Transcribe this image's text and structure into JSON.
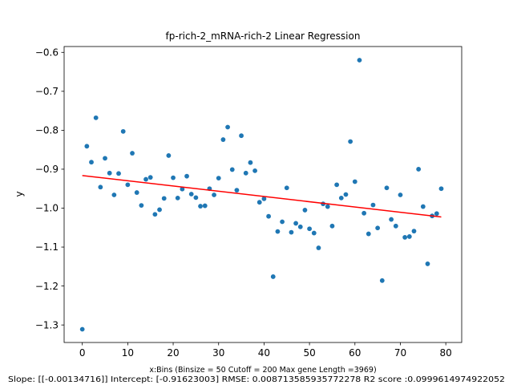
{
  "chart_data": {
    "type": "scatter",
    "title": "fp-rich-2_mRNA-rich-2 Linear Regression",
    "xlabel": "x:Bins  (Binsize = 50 Cutoff = 200 Max gene Length =3969)",
    "ylabel": "y",
    "stats_line": "Slope: [[-0.00134716]] Intercept: [-0.91623003] RMSE: 0.008713585935772278 R2 score :0.0999614974922052",
    "xlim": [
      -4,
      83.5
    ],
    "ylim": [
      -1.345,
      -0.585
    ],
    "xticks": [
      0,
      10,
      20,
      30,
      40,
      50,
      60,
      70,
      80
    ],
    "yticks": [
      -1.3,
      -1.2,
      -1.1,
      -1.0,
      -0.9,
      -0.8,
      -0.7,
      -0.6
    ],
    "xtick_labels": [
      "0",
      "10",
      "20",
      "30",
      "40",
      "50",
      "60",
      "70",
      "80"
    ],
    "ytick_labels": [
      "−1.3",
      "−1.2",
      "−1.1",
      "−1.0",
      "−0.9",
      "−0.8",
      "−0.7",
      "−0.6"
    ],
    "grid": false,
    "series": [
      {
        "kind": "points",
        "color": "#1f77b4",
        "x": [
          0,
          1,
          2,
          3,
          4,
          5,
          6,
          7,
          8,
          9,
          10,
          11,
          12,
          13,
          14,
          15,
          16,
          17,
          18,
          19,
          20,
          21,
          22,
          23,
          24,
          25,
          26,
          27,
          28,
          29,
          30,
          31,
          32,
          33,
          34,
          35,
          36,
          37,
          38,
          39,
          40,
          41,
          42,
          43,
          44,
          45,
          46,
          47,
          48,
          49,
          50,
          51,
          52,
          53,
          54,
          55,
          56,
          57,
          58,
          59,
          60,
          61,
          62,
          63,
          64,
          65,
          66,
          67,
          68,
          69,
          70,
          71,
          72,
          73,
          74,
          75,
          76,
          77,
          78,
          79
        ],
        "y": [
          -1.311,
          -0.841,
          -0.882,
          -0.768,
          -0.946,
          -0.872,
          -0.91,
          -0.966,
          -0.911,
          -0.803,
          -0.94,
          -0.859,
          -0.96,
          -0.993,
          -0.926,
          -0.921,
          -1.016,
          -1.004,
          -0.975,
          -0.865,
          -0.922,
          -0.974,
          -0.951,
          -0.918,
          -0.964,
          -0.973,
          -0.995,
          -0.994,
          -0.95,
          -0.966,
          -0.923,
          -0.824,
          -0.792,
          -0.901,
          -0.954,
          -0.814,
          -0.91,
          -0.883,
          -0.904,
          -0.985,
          -0.976,
          -1.021,
          -1.176,
          -1.06,
          -1.035,
          -0.948,
          -1.062,
          -1.039,
          -1.048,
          -1.005,
          -1.053,
          -1.064,
          -1.102,
          -0.989,
          -0.996,
          -1.046,
          -0.94,
          -0.974,
          -0.965,
          -0.829,
          -0.932,
          -0.62,
          -1.013,
          -1.066,
          -0.992,
          -1.051,
          -1.186,
          -0.948,
          -1.029,
          -1.046,
          -0.966,
          -1.075,
          -1.073,
          -1.059,
          -0.9,
          -0.996,
          -1.143,
          -1.02,
          -1.014,
          -0.95
        ]
      },
      {
        "kind": "fit_line",
        "color": "#ff0000",
        "x": [
          0,
          79
        ],
        "y": [
          -0.91623,
          -1.02266
        ]
      }
    ]
  }
}
